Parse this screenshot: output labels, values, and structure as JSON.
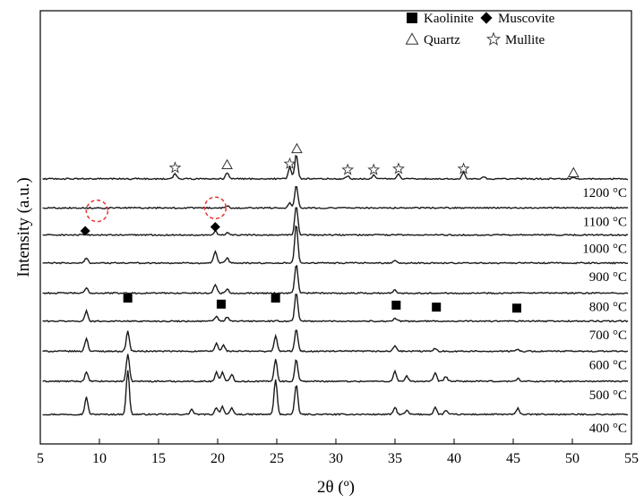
{
  "chart_data": {
    "type": "line",
    "xlabel": "2θ (º)",
    "ylabel": "Intensity (a.u.)",
    "xlim": [
      5,
      55
    ],
    "xticks": [
      5,
      10,
      15,
      20,
      25,
      30,
      35,
      40,
      45,
      50,
      55
    ],
    "series": [
      {
        "name": "400 °C",
        "baseline": 0.0,
        "peaks": [
          [
            8.9,
            0.17
          ],
          [
            12.4,
            0.44
          ],
          [
            17.8,
            0.05
          ],
          [
            19.9,
            0.07
          ],
          [
            20.4,
            0.08
          ],
          [
            21.2,
            0.06
          ],
          [
            24.9,
            0.35
          ],
          [
            26.65,
            0.3
          ],
          [
            35.0,
            0.07
          ],
          [
            36.0,
            0.04
          ],
          [
            38.4,
            0.07
          ],
          [
            39.3,
            0.04
          ],
          [
            45.4,
            0.06
          ]
        ]
      },
      {
        "name": "500 °C",
        "baseline": 0.33,
        "peaks": [
          [
            8.9,
            0.09
          ],
          [
            12.4,
            0.27
          ],
          [
            19.9,
            0.09
          ],
          [
            20.4,
            0.09
          ],
          [
            21.2,
            0.07
          ],
          [
            24.9,
            0.22
          ],
          [
            26.65,
            0.22
          ],
          [
            35.0,
            0.1
          ],
          [
            36.0,
            0.05
          ],
          [
            38.4,
            0.08
          ],
          [
            39.3,
            0.05
          ],
          [
            45.4,
            0.03
          ]
        ]
      },
      {
        "name": "600 °C",
        "baseline": 0.63,
        "peaks": [
          [
            8.9,
            0.13
          ],
          [
            12.4,
            0.2
          ],
          [
            19.9,
            0.08
          ],
          [
            20.5,
            0.06
          ],
          [
            24.9,
            0.15
          ],
          [
            26.65,
            0.22
          ],
          [
            35.0,
            0.06
          ],
          [
            38.4,
            0.03
          ],
          [
            45.4,
            0.02
          ]
        ]
      },
      {
        "name": "700 °C",
        "baseline": 0.93,
        "peaks": [
          [
            8.9,
            0.1
          ],
          [
            19.9,
            0.05
          ],
          [
            20.8,
            0.04
          ],
          [
            26.65,
            0.29
          ],
          [
            35.0,
            0.03
          ]
        ]
      },
      {
        "name": "800 °C",
        "baseline": 1.21,
        "peaks": [
          [
            8.9,
            0.05
          ],
          [
            19.8,
            0.09
          ],
          [
            20.8,
            0.04
          ],
          [
            26.65,
            0.29
          ],
          [
            35.0,
            0.03
          ]
        ]
      },
      {
        "name": "900 °C",
        "baseline": 1.51,
        "peaks": [
          [
            8.9,
            0.05
          ],
          [
            19.8,
            0.11
          ],
          [
            20.8,
            0.05
          ],
          [
            26.65,
            0.39
          ],
          [
            35.0,
            0.03
          ]
        ]
      },
      {
        "name": "1000 °C",
        "baseline": 1.79,
        "peaks": [
          [
            19.8,
            0.04
          ],
          [
            20.8,
            0.02
          ],
          [
            26.65,
            0.29
          ]
        ]
      },
      {
        "name": "1100 °C",
        "baseline": 2.06,
        "peaks": [
          [
            20.8,
            0.02
          ],
          [
            26.1,
            0.05
          ],
          [
            26.65,
            0.23
          ]
        ]
      },
      {
        "name": "1200 °C",
        "baseline": 2.35,
        "peaks": [
          [
            16.4,
            0.05
          ],
          [
            20.8,
            0.06
          ],
          [
            26.1,
            0.12
          ],
          [
            26.65,
            0.24
          ],
          [
            31.0,
            0.03
          ],
          [
            33.2,
            0.04
          ],
          [
            35.3,
            0.05
          ],
          [
            40.8,
            0.07
          ],
          [
            42.5,
            0.02
          ],
          [
            50.1,
            0.01
          ]
        ]
      }
    ],
    "legend": [
      {
        "symbol": "square",
        "label": "Kaolinite"
      },
      {
        "symbol": "diamond",
        "label": "Muscovite"
      },
      {
        "symbol": "triangle",
        "label": "Quartz"
      },
      {
        "symbol": "star",
        "label": "Mullite"
      }
    ],
    "legend_position": "top-right",
    "markers": [
      {
        "symbol": "square",
        "x": 12.4,
        "y": 1.16
      },
      {
        "symbol": "square",
        "x": 20.3,
        "y": 1.1
      },
      {
        "symbol": "square",
        "x": 24.9,
        "y": 1.16
      },
      {
        "symbol": "square",
        "x": 35.1,
        "y": 1.09
      },
      {
        "symbol": "square",
        "x": 38.5,
        "y": 1.07
      },
      {
        "symbol": "square",
        "x": 45.3,
        "y": 1.06
      },
      {
        "symbol": "diamond",
        "x": 8.8,
        "y": 1.83
      },
      {
        "symbol": "diamond",
        "x": 19.8,
        "y": 1.87
      },
      {
        "symbol": "triangle",
        "x": 20.8,
        "y": 2.49
      },
      {
        "symbol": "triangle",
        "x": 26.7,
        "y": 2.65
      },
      {
        "symbol": "triangle",
        "x": 50.1,
        "y": 2.41
      },
      {
        "symbol": "star",
        "x": 16.4,
        "y": 2.46
      },
      {
        "symbol": "star",
        "x": 26.1,
        "y": 2.5
      },
      {
        "symbol": "star",
        "x": 31.0,
        "y": 2.44
      },
      {
        "symbol": "star",
        "x": 33.2,
        "y": 2.44
      },
      {
        "symbol": "star",
        "x": 35.3,
        "y": 2.45
      },
      {
        "symbol": "star",
        "x": 40.8,
        "y": 2.45
      }
    ],
    "highlight_circles": [
      {
        "x": 9.8,
        "y": 2.03,
        "color": "#e8322d"
      },
      {
        "x": 19.8,
        "y": 2.06,
        "color": "#e8322d"
      }
    ],
    "grid": false
  }
}
